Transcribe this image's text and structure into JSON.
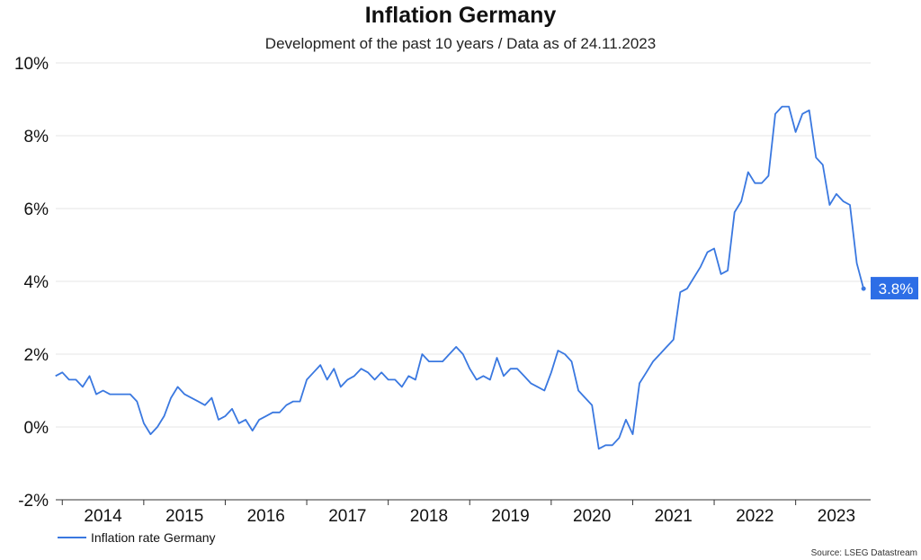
{
  "chart_data": {
    "type": "line",
    "title": "Inflation Germany",
    "subtitle": "Development of the past 10 years / Data as of 24.11.2023",
    "xlabel": "",
    "ylabel": "",
    "ylim": [
      -2,
      10
    ],
    "yticks": [
      {
        "value": 10,
        "label": "10%"
      },
      {
        "value": 8,
        "label": "8%"
      },
      {
        "value": 6,
        "label": "6%"
      },
      {
        "value": 4,
        "label": "4%"
      },
      {
        "value": 2,
        "label": "2%"
      },
      {
        "value": 0,
        "label": "0%"
      },
      {
        "value": -2,
        "label": "-2%"
      }
    ],
    "xlim": [
      2013.92,
      2023.92
    ],
    "xticks": [
      {
        "value": 2014.5,
        "label": "2014"
      },
      {
        "value": 2015.5,
        "label": "2015"
      },
      {
        "value": 2016.5,
        "label": "2016"
      },
      {
        "value": 2017.5,
        "label": "2017"
      },
      {
        "value": 2018.5,
        "label": "2018"
      },
      {
        "value": 2019.5,
        "label": "2019"
      },
      {
        "value": 2020.5,
        "label": "2020"
      },
      {
        "value": 2021.5,
        "label": "2021"
      },
      {
        "value": 2022.5,
        "label": "2022"
      },
      {
        "value": 2023.5,
        "label": "2023"
      }
    ],
    "grid": "horizontal",
    "legend": "bottom-left",
    "series": [
      {
        "name": "Inflation rate Germany",
        "color": "#3a78e0",
        "x_start": 2013.917,
        "x_step": 0.08333,
        "values": [
          1.4,
          1.5,
          1.3,
          1.3,
          1.1,
          1.4,
          0.9,
          1.0,
          0.9,
          0.9,
          0.9,
          0.9,
          0.7,
          0.1,
          -0.2,
          0.0,
          0.3,
          0.8,
          1.1,
          0.9,
          0.8,
          0.7,
          0.6,
          0.8,
          0.2,
          0.3,
          0.5,
          0.1,
          0.2,
          -0.1,
          0.2,
          0.3,
          0.4,
          0.4,
          0.6,
          0.7,
          0.7,
          1.3,
          1.5,
          1.7,
          1.3,
          1.6,
          1.1,
          1.3,
          1.4,
          1.6,
          1.5,
          1.3,
          1.5,
          1.3,
          1.3,
          1.1,
          1.4,
          1.3,
          2.0,
          1.8,
          1.8,
          1.8,
          2.0,
          2.2,
          2.0,
          1.6,
          1.3,
          1.4,
          1.3,
          1.9,
          1.4,
          1.6,
          1.6,
          1.4,
          1.2,
          1.1,
          1.0,
          1.5,
          2.1,
          2.0,
          1.8,
          1.0,
          0.8,
          0.6,
          -0.6,
          -0.5,
          -0.5,
          -0.3,
          0.2,
          -0.2,
          1.2,
          1.5,
          1.8,
          2.0,
          2.2,
          2.4,
          3.7,
          3.8,
          4.1,
          4.4,
          4.8,
          4.9,
          4.2,
          4.3,
          5.9,
          6.2,
          7.0,
          6.7,
          6.7,
          6.9,
          8.6,
          8.8,
          8.8,
          8.1,
          8.6,
          8.7,
          7.4,
          7.2,
          6.1,
          6.4,
          6.2,
          6.1,
          4.5,
          3.8
        ]
      }
    ],
    "end_label": "3.8%",
    "end_label_color": "#2d6ee6",
    "source": "Source: LSEG Datastream"
  }
}
